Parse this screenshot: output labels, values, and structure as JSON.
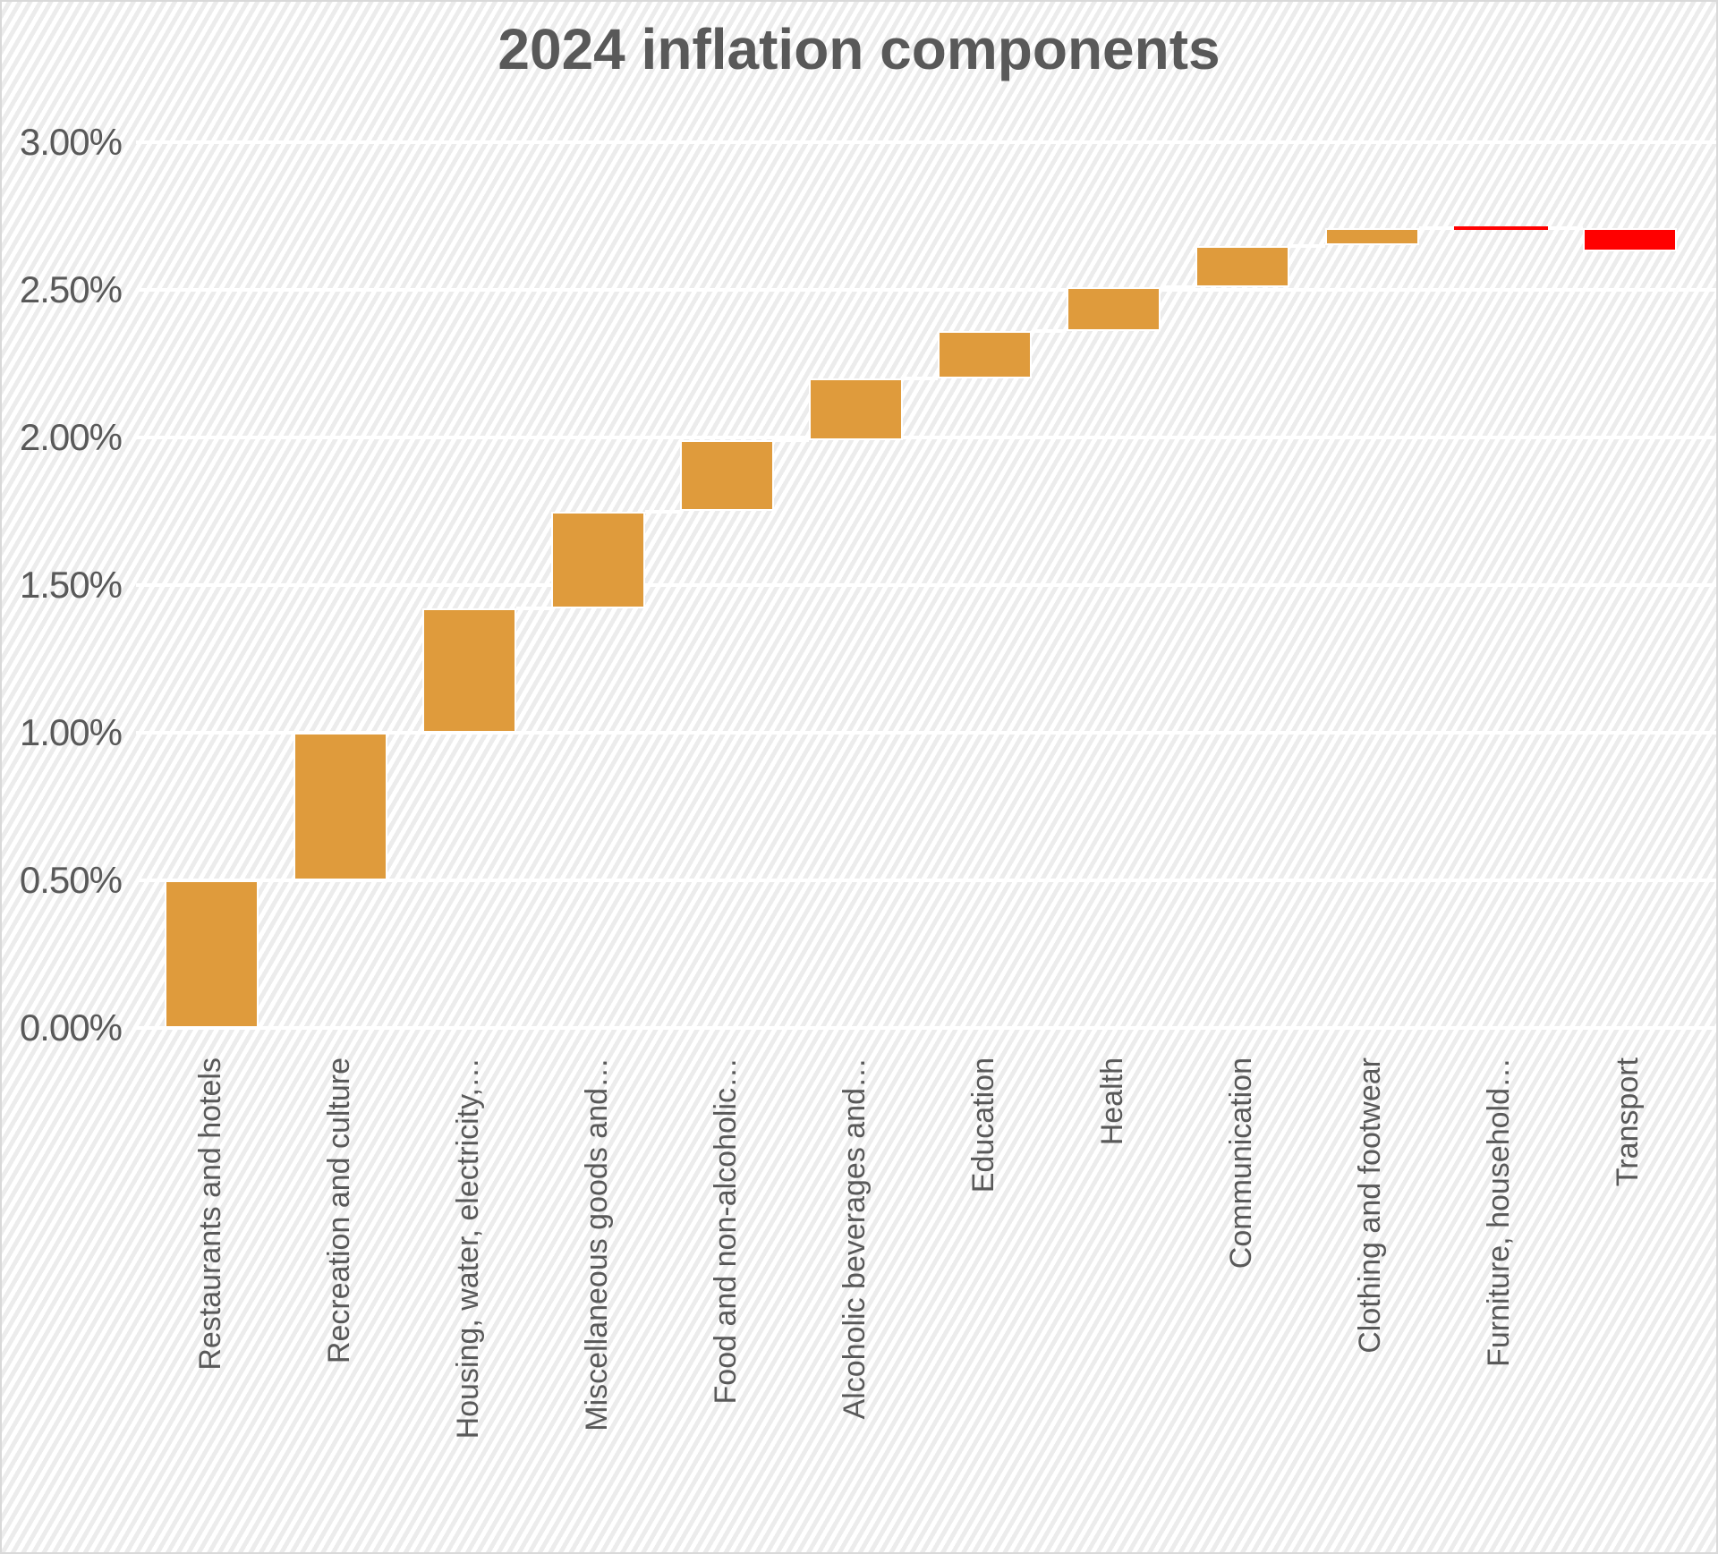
{
  "title": "2024 inflation components",
  "colors": {
    "increase": "#df9b3c",
    "decrease": "#ff0000",
    "text": "#595959",
    "gridline": "#ffffff",
    "background_stripe": "#ececec",
    "border": "#d9d9d9"
  },
  "y_axis": {
    "tick_labels": [
      "3.00%",
      "2.50%",
      "2.00%",
      "1.50%",
      "1.00%",
      "0.50%",
      "0.00%"
    ],
    "tick_values": [
      3.0,
      2.5,
      2.0,
      1.5,
      1.0,
      0.5,
      0.0
    ]
  },
  "chart_data": {
    "type": "bar",
    "subtype": "waterfall",
    "title": "2024 inflation components",
    "categories": [
      "Restaurants and hotels",
      "Recreation and culture",
      "Housing, water, electricity,…",
      "Miscellaneous goods and…",
      "Food and non-alcoholic…",
      "Alcoholic beverages and…",
      "Education",
      "Health",
      "Communication",
      "Clothing and footwear",
      "Furniture, household…",
      "Transport"
    ],
    "values": [
      0.5,
      0.5,
      0.42,
      0.33,
      0.24,
      0.21,
      0.16,
      0.15,
      0.14,
      0.06,
      0.0,
      -0.08
    ],
    "cumulative": [
      0.5,
      1.0,
      1.42,
      1.75,
      1.99,
      2.2,
      2.36,
      2.51,
      2.65,
      2.71,
      2.71,
      2.63
    ],
    "xlabel": "",
    "ylabel": "",
    "ylim": [
      0,
      3
    ],
    "y_tick_step": 0.5,
    "grid": "white horizontal gridlines on striped background",
    "legend": "none",
    "bar_color_positive": "#df9b3c",
    "bar_color_negative": "#ff0000"
  }
}
